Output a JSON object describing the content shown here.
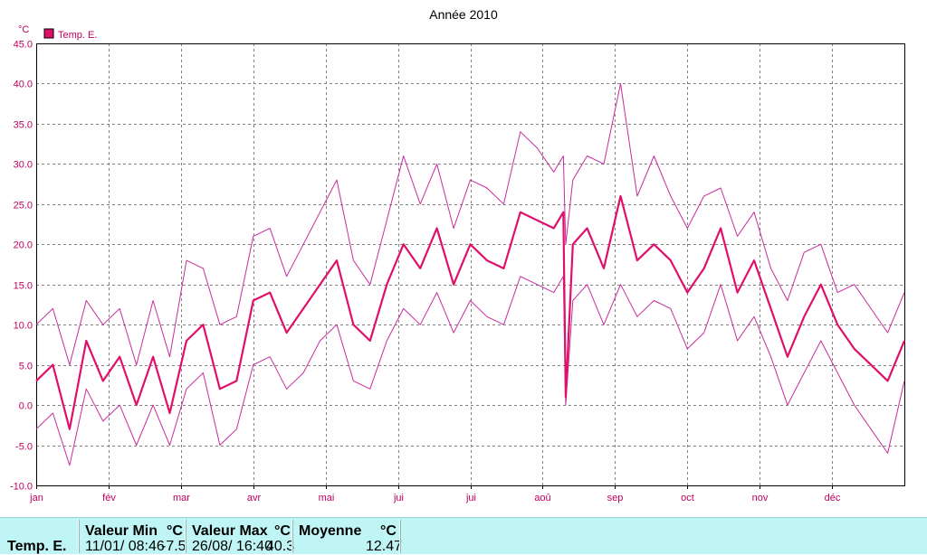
{
  "chart_data": {
    "type": "line",
    "title": "Année 2010",
    "ylabel": "°C",
    "ylim": [
      -10,
      45
    ],
    "yticks": [
      "45.0",
      "40.0",
      "35.0",
      "30.0",
      "25.0",
      "20.0",
      "15.0",
      "10.0",
      "5.0",
      "0.0",
      "-5.0",
      "-10.0"
    ],
    "x_tick_labels": [
      "jan",
      "fév",
      "mar",
      "avr",
      "mai",
      "jui",
      "jui",
      "aoû",
      "sep",
      "oct",
      "nov",
      "déc"
    ],
    "grid": true,
    "legend": "top-left",
    "series": [
      {
        "name": "Temp. E.",
        "color": "#e0106a",
        "role": "mean",
        "x_unit": "day of year",
        "x": [
          1,
          8,
          15,
          22,
          29,
          36,
          43,
          50,
          57,
          64,
          71,
          78,
          85,
          92,
          99,
          106,
          113,
          120,
          127,
          134,
          141,
          148,
          155,
          162,
          169,
          176,
          183,
          190,
          197,
          204,
          211,
          218,
          222,
          223,
          226,
          232,
          239,
          246,
          253,
          260,
          267,
          274,
          281,
          288,
          295,
          302,
          309,
          316,
          323,
          330,
          337,
          344,
          351,
          358,
          365
        ],
        "y": [
          3,
          5,
          -3,
          8,
          3,
          6,
          0,
          6,
          -1,
          8,
          10,
          2,
          3,
          13,
          14,
          9,
          12,
          15,
          18,
          10,
          8,
          15,
          20,
          17,
          22,
          15,
          20,
          18,
          17,
          24,
          23,
          22,
          24,
          1,
          20,
          22,
          17,
          26,
          18,
          20,
          18,
          14,
          17,
          22,
          14,
          18,
          12,
          6,
          11,
          15,
          10,
          7,
          5,
          3,
          8
        ]
      },
      {
        "name": "",
        "color": "#c82c9c",
        "role": "max",
        "x_unit": "day of year",
        "x": [
          1,
          8,
          15,
          22,
          29,
          36,
          43,
          50,
          57,
          64,
          71,
          78,
          85,
          92,
          99,
          106,
          113,
          120,
          127,
          134,
          141,
          148,
          155,
          162,
          169,
          176,
          183,
          190,
          197,
          204,
          211,
          218,
          222,
          223,
          226,
          232,
          239,
          246,
          253,
          260,
          267,
          274,
          281,
          288,
          295,
          302,
          309,
          316,
          323,
          330,
          337,
          344,
          351,
          358,
          365
        ],
        "y": [
          10,
          12,
          5,
          13,
          10,
          12,
          5,
          13,
          6,
          18,
          17,
          10,
          11,
          21,
          22,
          16,
          20,
          24,
          28,
          18,
          15,
          23,
          31,
          25,
          30,
          22,
          28,
          27,
          25,
          34,
          32,
          29,
          31,
          20,
          28,
          31,
          30,
          40,
          26,
          31,
          26,
          22,
          26,
          27,
          21,
          24,
          17,
          13,
          19,
          20,
          14,
          15,
          12,
          9,
          14
        ]
      },
      {
        "name": "",
        "color": "#c82c9c",
        "role": "min",
        "x_unit": "day of year",
        "x": [
          1,
          8,
          15,
          22,
          29,
          36,
          43,
          50,
          57,
          64,
          71,
          78,
          85,
          92,
          99,
          106,
          113,
          120,
          127,
          134,
          141,
          148,
          155,
          162,
          169,
          176,
          183,
          190,
          197,
          204,
          211,
          218,
          222,
          223,
          226,
          232,
          239,
          246,
          253,
          260,
          267,
          274,
          281,
          288,
          295,
          302,
          309,
          316,
          323,
          330,
          337,
          344,
          351,
          358,
          365
        ],
        "y": [
          -3,
          -1,
          -7.5,
          2,
          -2,
          0,
          -5,
          0,
          -5,
          2,
          4,
          -5,
          -3,
          5,
          6,
          2,
          4,
          8,
          10,
          3,
          2,
          8,
          12,
          10,
          14,
          9,
          13,
          11,
          10,
          16,
          15,
          14,
          16,
          0,
          13,
          15,
          10,
          15,
          11,
          13,
          12,
          7,
          9,
          15,
          8,
          11,
          6,
          0,
          4,
          8,
          4,
          0,
          -3,
          -6,
          3
        ]
      }
    ]
  },
  "legend_label": "Temp. E.",
  "stats": {
    "row_label": "Temp. E.",
    "min_header": "Valeur Min",
    "min_unit": "°C",
    "min_datetime": "11/01/  08:46",
    "min_value": "-7.5",
    "max_header": "Valeur Max",
    "max_unit": "°C",
    "max_datetime": "26/08/  16:40",
    "max_value": "40.3",
    "avg_header": "Moyenne",
    "avg_unit": "°C",
    "avg_value": "12.47"
  },
  "colors": {
    "mean_series": "#e0106a",
    "range_series": "#c82c9c",
    "axis_text": "#c00060",
    "grid": "#808080",
    "stats_background": "#bff5f5"
  }
}
